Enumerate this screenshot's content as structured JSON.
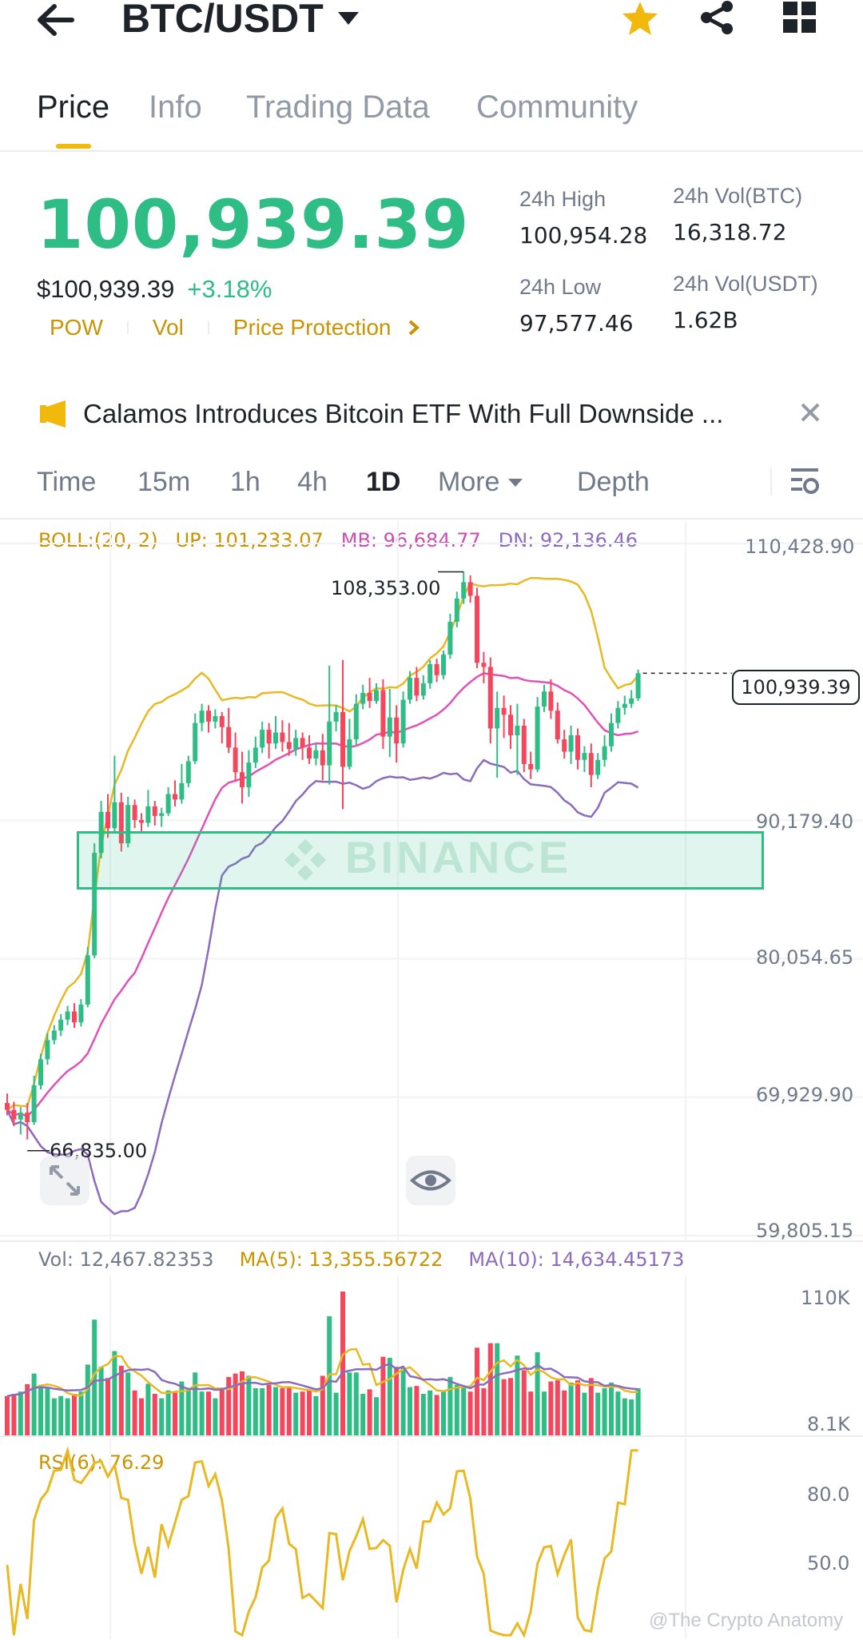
{
  "header": {
    "pair": "BTC/USDT"
  },
  "tabs": [
    {
      "label": "Price",
      "active": true
    },
    {
      "label": "Info",
      "active": false
    },
    {
      "label": "Trading Data",
      "active": false
    },
    {
      "label": "Community",
      "active": false
    }
  ],
  "price": {
    "last": "100,939.39",
    "usd": "$100,939.39",
    "change": "+3.18%",
    "chips": [
      "POW",
      "Vol",
      "Price Protection"
    ]
  },
  "stats": {
    "high_label": "24h High",
    "high": "100,954.28",
    "vol_btc_label": "24h Vol(BTC)",
    "vol_btc": "16,318.72",
    "low_label": "24h Low",
    "low": "97,577.46",
    "vol_usdt_label": "24h Vol(USDT)",
    "vol_usdt": "1.62B"
  },
  "news": {
    "text": "Calamos Introduces Bitcoin ETF With Full Downside ..."
  },
  "timeframes": [
    {
      "label": "Time",
      "active": false
    },
    {
      "label": "15m",
      "active": false
    },
    {
      "label": "1h",
      "active": false
    },
    {
      "label": "4h",
      "active": false
    },
    {
      "label": "1D",
      "active": true
    },
    {
      "label": "More",
      "active": false
    },
    {
      "label": "Depth",
      "active": false
    }
  ],
  "indicators": {
    "boll": "BOLL:(20, 2)",
    "up": "UP: 101,233.07",
    "mb": "MB: 96,684.77",
    "dn": "DN: 92,136.46",
    "vol": "Vol: 12,467.82353",
    "ma5": "MA(5): 13,355.56722",
    "ma10": "MA(10): 14,634.45173",
    "rsi": "RSI(6): 76.29"
  },
  "colors": {
    "up": "#2ebd85",
    "down": "#f6465d",
    "accent": "#f0b90b",
    "boll_up": "#e8b923",
    "boll_mb": "#e052b8",
    "boll_dn": "#8a6bbd"
  },
  "watermark": "BINANCE",
  "credit": "@The Crypto Anatomy",
  "chart_data": {
    "type": "candlestick",
    "price_axis": [
      "110,428.90",
      "90,179.40",
      "80,054.65",
      "69,929.90",
      "59,805.15"
    ],
    "current_price_label": "100,939.39",
    "max_label": "108,353.00",
    "min_label": "66,835.00",
    "volume_axis": [
      "110K",
      "8.1K"
    ],
    "rsi_axis": [
      "80.0",
      "50.0"
    ],
    "ylim": [
      59805.15,
      110428.9
    ],
    "candles": [
      [
        69500,
        69000,
        70200,
        68600
      ],
      [
        69000,
        68300,
        69600,
        67800
      ],
      [
        68300,
        68800,
        69200,
        67200
      ],
      [
        68800,
        68100,
        69500,
        66835
      ],
      [
        68100,
        70800,
        71500,
        67900
      ],
      [
        70800,
        72700,
        73100,
        70500
      ],
      [
        72700,
        74100,
        74600,
        72300
      ],
      [
        74100,
        74800,
        75200,
        73800
      ],
      [
        74800,
        75600,
        76000,
        74400
      ],
      [
        75600,
        76200,
        76600,
        75200
      ],
      [
        76200,
        75400,
        76800,
        75000
      ],
      [
        75400,
        76700,
        77100,
        75100
      ],
      [
        76700,
        80300,
        80900,
        76500
      ],
      [
        80300,
        87800,
        88500,
        80100
      ],
      [
        87800,
        90800,
        91600,
        87400
      ],
      [
        90800,
        89600,
        92100,
        88900
      ],
      [
        89600,
        91500,
        94900,
        89300
      ],
      [
        91500,
        88500,
        92200,
        87900
      ],
      [
        88500,
        91300,
        91900,
        88200
      ],
      [
        91300,
        90200,
        91700,
        89600
      ],
      [
        90200,
        90000,
        90700,
        89300
      ],
      [
        90000,
        91200,
        92400,
        89700
      ],
      [
        91200,
        90500,
        91600,
        89800
      ],
      [
        90500,
        90700,
        91100,
        89700
      ],
      [
        90700,
        92100,
        92600,
        90500
      ],
      [
        92100,
        91700,
        93100,
        91200
      ],
      [
        91700,
        92900,
        94300,
        91400
      ],
      [
        92900,
        94500,
        94900,
        92600
      ],
      [
        94500,
        97300,
        98000,
        94300
      ],
      [
        97300,
        98200,
        98700,
        96700
      ],
      [
        98200,
        97400,
        98600,
        96600
      ],
      [
        97400,
        97800,
        98300,
        96900
      ],
      [
        97800,
        97000,
        98100,
        95800
      ],
      [
        97000,
        95500,
        98400,
        95100
      ],
      [
        95500,
        93700,
        96600,
        93000
      ],
      [
        93700,
        92600,
        95200,
        91400
      ],
      [
        92600,
        94400,
        95300,
        91900
      ],
      [
        94400,
        95500,
        96300,
        94000
      ],
      [
        95500,
        96800,
        97400,
        95100
      ],
      [
        96800,
        95800,
        97300,
        94700
      ],
      [
        95800,
        96600,
        97800,
        95400
      ],
      [
        96600,
        95900,
        97500,
        95200
      ],
      [
        95900,
        95400,
        97300,
        94900
      ],
      [
        95400,
        96200,
        96800,
        94900
      ],
      [
        96200,
        95500,
        96600,
        94600
      ],
      [
        95500,
        94700,
        96400,
        94300
      ],
      [
        94700,
        95300,
        95800,
        94200
      ],
      [
        95300,
        94200,
        96500,
        93100
      ],
      [
        94200,
        97400,
        101500,
        92800
      ],
      [
        97400,
        98100,
        98600,
        96700
      ],
      [
        98100,
        94100,
        101900,
        91000
      ],
      [
        94100,
        96100,
        97600,
        93900
      ],
      [
        96100,
        98700,
        99400,
        95700
      ],
      [
        98700,
        99500,
        100100,
        98300
      ],
      [
        99500,
        98900,
        100600,
        98400
      ],
      [
        98900,
        99700,
        100200,
        98700
      ],
      [
        99700,
        96300,
        100500,
        95400
      ],
      [
        96300,
        97700,
        99800,
        94800
      ],
      [
        97700,
        95800,
        98600,
        94400
      ],
      [
        95800,
        99000,
        99600,
        95500
      ],
      [
        99000,
        100600,
        101100,
        98700
      ],
      [
        100600,
        99300,
        101400,
        98900
      ],
      [
        99300,
        100200,
        100800,
        99000
      ],
      [
        100200,
        101600,
        101900,
        99800
      ],
      [
        101600,
        100800,
        102000,
        100300
      ],
      [
        100800,
        102300,
        102600,
        100500
      ],
      [
        102300,
        104700,
        105300,
        102000
      ],
      [
        104700,
        106400,
        106900,
        104300
      ],
      [
        106400,
        107600,
        108353,
        106000
      ],
      [
        107600,
        106600,
        108100,
        106100
      ],
      [
        106600,
        101700,
        107200,
        101300
      ],
      [
        101700,
        101400,
        102500,
        100200
      ],
      [
        101400,
        96900,
        102100,
        95800
      ],
      [
        96900,
        98400,
        99600,
        93300
      ],
      [
        98400,
        97900,
        99300,
        96200
      ],
      [
        97900,
        96400,
        98600,
        95400
      ],
      [
        96400,
        97100,
        98700,
        93500
      ],
      [
        97100,
        94300,
        97600,
        93700
      ],
      [
        94300,
        93900,
        95200,
        93200
      ],
      [
        93900,
        98500,
        99200,
        93700
      ],
      [
        98500,
        99600,
        100100,
        98100
      ],
      [
        99600,
        98200,
        100500,
        97600
      ],
      [
        98200,
        96100,
        98800,
        95800
      ],
      [
        96100,
        95200,
        96800,
        94700
      ],
      [
        95200,
        96400,
        97100,
        94300
      ],
      [
        96400,
        94600,
        96900,
        93900
      ],
      [
        94600,
        95100,
        95600,
        93700
      ],
      [
        95100,
        93500,
        95800,
        92600
      ],
      [
        93500,
        94600,
        95100,
        93200
      ],
      [
        94600,
        95600,
        96400,
        94100
      ],
      [
        95600,
        97300,
        98000,
        95200
      ],
      [
        97300,
        98400,
        98900,
        96900
      ],
      [
        98400,
        98700,
        99300,
        97900
      ],
      [
        98700,
        99100,
        99700,
        98400
      ],
      [
        99100,
        100939,
        101200,
        98900
      ]
    ]
  }
}
